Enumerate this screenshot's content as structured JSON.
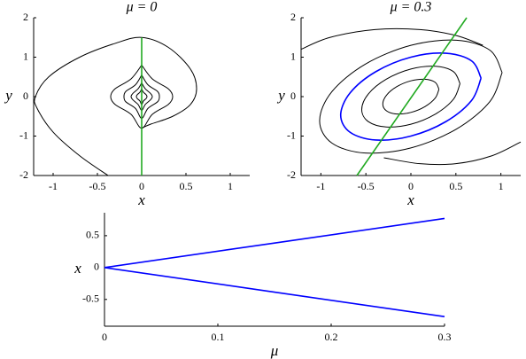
{
  "chart_data": [
    {
      "type": "line",
      "title": "μ = 0",
      "x_label": "x",
      "y_label": "y",
      "xlim": [
        -1.22,
        1.22
      ],
      "ylim": [
        -2,
        2
      ],
      "xticks": [
        -1,
        -0.5,
        0,
        0.5,
        1
      ],
      "yticks": [
        -2,
        -1,
        0,
        1,
        2
      ],
      "series": [
        {
          "color": "#000000",
          "x": [
            -0.38,
            -0.7,
            -1.0,
            -1.18,
            -1.2,
            -1.05,
            -0.7,
            -0.3,
            0,
            0.3,
            0.55,
            0.62,
            0.55,
            0.35,
            0.1,
            0
          ],
          "values": [
            -2,
            -1.5,
            -0.9,
            -0.3,
            0,
            0.5,
            1.0,
            1.35,
            1.5,
            1.25,
            0.7,
            0.2,
            -0.2,
            -0.5,
            -0.7,
            -0.8
          ]
        },
        {
          "color": "#000000",
          "x": [
            0,
            0.12,
            0.3,
            0.35,
            0.3,
            0.12,
            0,
            -0.12,
            -0.3,
            -0.35,
            -0.3,
            -0.12,
            0
          ],
          "values": [
            0.8,
            0.45,
            0.2,
            0,
            -0.2,
            -0.45,
            -0.8,
            -0.45,
            -0.2,
            0,
            0.2,
            0.45,
            0.8
          ]
        },
        {
          "color": "#000000",
          "x": [
            0,
            0.07,
            0.18,
            0.2,
            0.18,
            0.07,
            0,
            -0.07,
            -0.18,
            -0.2,
            -0.18,
            -0.07,
            0
          ],
          "values": [
            0.55,
            0.3,
            0.13,
            0,
            -0.13,
            -0.3,
            -0.55,
            -0.3,
            -0.13,
            0,
            0.13,
            0.3,
            0.55
          ]
        },
        {
          "color": "#000000",
          "x": [
            0,
            0.04,
            0.1,
            0.12,
            0.1,
            0.04,
            0,
            -0.04,
            -0.1,
            -0.12,
            -0.1,
            -0.04,
            0
          ],
          "values": [
            0.35,
            0.2,
            0.08,
            0,
            -0.08,
            -0.2,
            -0.35,
            -0.2,
            -0.08,
            0,
            0.08,
            0.2,
            0.35
          ]
        },
        {
          "color": "#000000",
          "x": [
            0,
            0.02,
            0.05,
            0.06,
            0.05,
            0.02,
            0,
            -0.02,
            -0.05,
            -0.06,
            -0.05,
            -0.02,
            0
          ],
          "values": [
            0.2,
            0.11,
            0.05,
            0,
            -0.05,
            -0.11,
            -0.2,
            -0.11,
            -0.05,
            0,
            0.05,
            0.11,
            0.2
          ]
        },
        {
          "color": "#22aa22",
          "x": [
            0,
            0
          ],
          "values": [
            -2,
            1.5
          ]
        }
      ]
    },
    {
      "type": "line",
      "title": "μ = 0.3",
      "x_label": "x",
      "y_label": "y",
      "xlim": [
        -1.22,
        1.22
      ],
      "ylim": [
        -2,
        2
      ],
      "xticks": [
        -1,
        -0.5,
        0,
        0.5,
        1
      ],
      "yticks": [
        -2,
        -1,
        0,
        1,
        2
      ],
      "series": [
        {
          "color": "#000000",
          "x": [
            -1.22,
            -0.9,
            -0.4,
            0.1,
            0.5,
            0.8
          ],
          "values": [
            1.2,
            1.5,
            1.7,
            1.7,
            1.55,
            1.3
          ]
        },
        {
          "color": "#000000",
          "x": [
            1.22,
            0.9,
            0.5,
            0.1,
            -0.3
          ],
          "values": [
            -1.15,
            -1.5,
            -1.7,
            -1.7,
            -1.55
          ]
        },
        {
          "color": "#000000",
          "x": [
            1.014,
            0.878,
            0.507,
            0,
            -0.507,
            -0.878,
            -1.014,
            -0.878,
            -0.507,
            0,
            0.507,
            0.878,
            1.014
          ],
          "values": [
            0.611,
            1.177,
            1.43,
            1.3,
            0.822,
            0.124,
            -0.611,
            -1.177,
            -1.43,
            -1.3,
            -0.822,
            -0.124,
            0.611
          ]
        },
        {
          "color": "#0000ff",
          "x": [
            0.78,
            0.675,
            0.39,
            0,
            -0.39,
            -0.675,
            -0.78,
            -0.675,
            -0.39,
            0,
            0.39,
            0.675,
            0.78
          ],
          "values": [
            0.47,
            0.905,
            1.1,
            1.0,
            0.632,
            0.095,
            -0.47,
            -0.905,
            -1.1,
            -1.0,
            -0.632,
            -0.095,
            0.47
          ]
        },
        {
          "color": "#000000",
          "x": [
            0.546,
            0.473,
            0.273,
            0,
            -0.273,
            -0.473,
            -0.546,
            -0.473,
            -0.273,
            0,
            0.273,
            0.473,
            0.546
          ],
          "values": [
            0.329,
            0.634,
            0.77,
            0.7,
            0.442,
            0.067,
            -0.329,
            -0.634,
            -0.77,
            -0.7,
            -0.442,
            -0.067,
            0.329
          ]
        },
        {
          "color": "#000000",
          "x": [
            0.312,
            0.27,
            0.156,
            0,
            -0.156,
            -0.27,
            -0.312,
            -0.27,
            -0.156,
            0,
            0.156,
            0.27,
            0.312
          ],
          "values": [
            0.188,
            0.362,
            0.44,
            0.4,
            0.253,
            0.038,
            -0.188,
            -0.362,
            -0.44,
            -0.4,
            -0.253,
            -0.038,
            0.188
          ]
        },
        {
          "color": "#22aa22",
          "x": [
            -0.6,
            0.62
          ],
          "values": [
            -2,
            2
          ]
        }
      ]
    },
    {
      "type": "line",
      "x_label": "μ",
      "y_label": "x",
      "xlim": [
        0,
        0.3
      ],
      "ylim": [
        -0.92,
        0.86
      ],
      "xticks": [
        0,
        0.1,
        0.2,
        0.3
      ],
      "yticks": [
        -0.5,
        0,
        0.5
      ],
      "series": [
        {
          "color": "#0000ff",
          "x": [
            0,
            0.3
          ],
          "values": [
            0,
            0.77
          ]
        },
        {
          "color": "#0000ff",
          "x": [
            0,
            0.3
          ],
          "values": [
            0,
            -0.77
          ]
        }
      ]
    }
  ]
}
